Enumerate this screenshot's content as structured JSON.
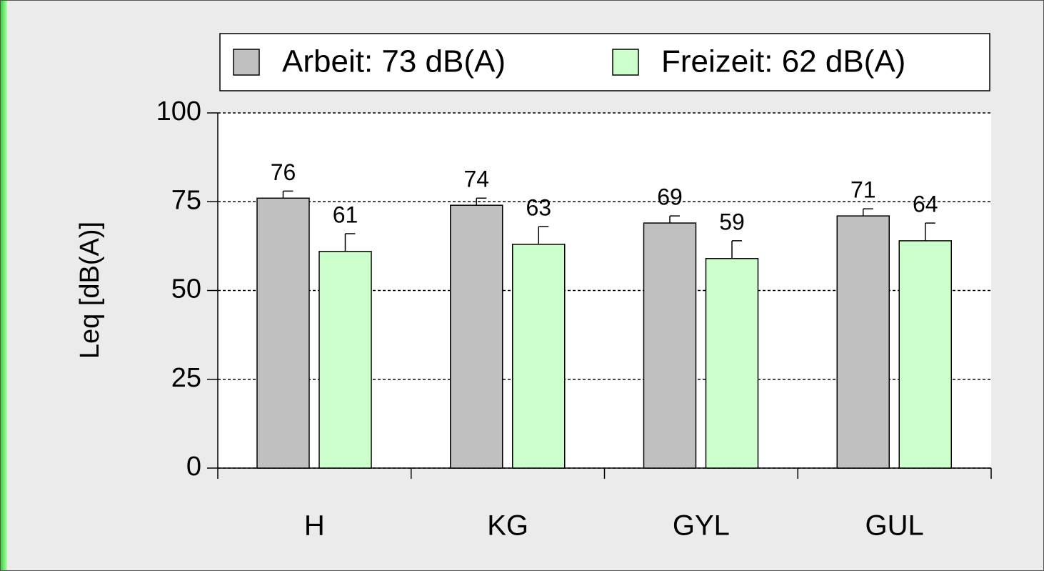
{
  "chart_data": {
    "type": "bar",
    "y_label": "Leq [dB(A)]",
    "categories": [
      "H",
      "KG",
      "GYL",
      "GUL"
    ],
    "series": [
      {
        "name": "Arbeit: 73 dB(A)",
        "color": "#c0c0c0",
        "values": [
          76,
          74,
          69,
          71
        ],
        "errors": [
          2,
          2,
          2,
          2
        ]
      },
      {
        "name": "Freizeit: 62 dB(A)",
        "color": "#ccffcc",
        "values": [
          61,
          63,
          59,
          64
        ],
        "errors": [
          5,
          5,
          5,
          5
        ]
      }
    ],
    "ylim": [
      0,
      100
    ],
    "yticks": [
      0,
      25,
      50,
      75,
      100
    ],
    "grid": true,
    "legend": "top"
  }
}
